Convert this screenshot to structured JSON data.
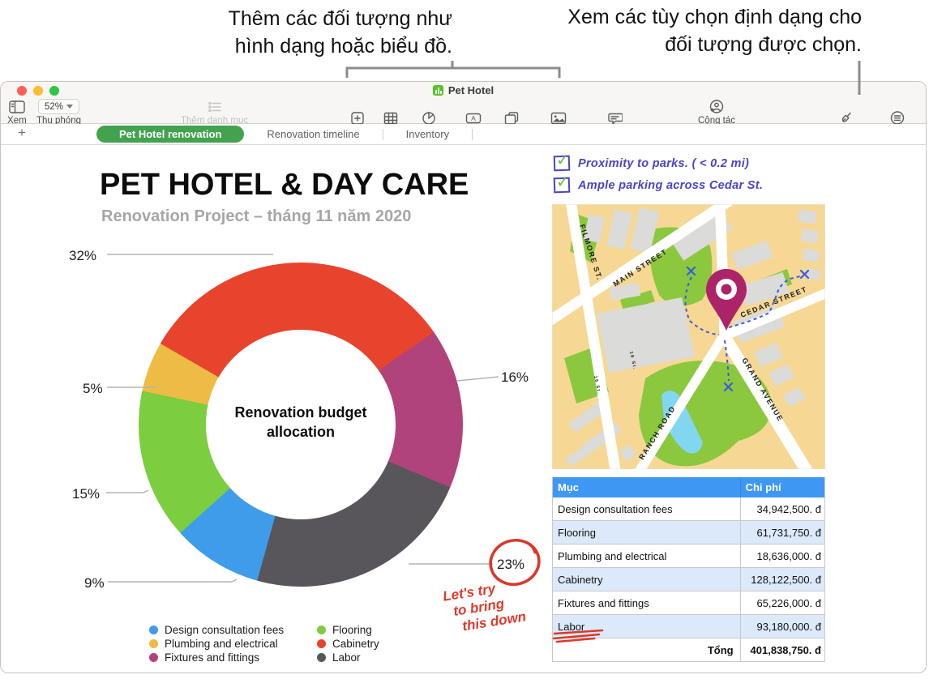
{
  "callouts": {
    "left_line1": "Thêm các đối tượng như",
    "left_line2": "hình dạng hoặc biểu đồ.",
    "right_line1": "Xem các tùy chọn định dạng cho",
    "right_line2": "đối tượng được chọn."
  },
  "window": {
    "title": "Pet Hotel",
    "toolbar": {
      "view": "Xem",
      "zoom_value": "52%",
      "zoom": "Thu phóng",
      "add_category": "Thêm danh mục",
      "insert": "Chèn",
      "table": "Bảng",
      "chart": "Biểu đồ",
      "text": "Văn bản",
      "shape": "Hình",
      "media": "Phương tiện",
      "comment": "Nhận xét",
      "collaborate": "Cộng tác",
      "format": "Định dạng",
      "organize": "Tổ chức"
    },
    "tabs": {
      "add": "+",
      "items": [
        {
          "label": "Pet Hotel renovation",
          "active": true
        },
        {
          "label": "Renovation timeline",
          "active": false
        },
        {
          "label": "Inventory",
          "active": false
        }
      ]
    }
  },
  "sheet": {
    "title": "PET HOTEL & DAY CARE",
    "subtitle": "Renovation Project – tháng 11 năm 2020",
    "checklist": [
      "Proximity to parks. ( < 0.2 mi)",
      "Ample parking across Cedar St."
    ],
    "red_note": [
      "Let's try",
      "to bring",
      "this down"
    ],
    "map_labels": {
      "filmore": "FILMORE ST.",
      "main": "MAIN STREET",
      "cedar": "CEDAR STREET",
      "grand": "GRAND AVENUE",
      "ranch": "RANCH ROAD",
      "st18": "18 St.",
      "st16": "16 St."
    }
  },
  "chart_data": {
    "type": "pie",
    "donut": true,
    "title": "Renovation budget allocation",
    "center_label": [
      "Renovation budget",
      "allocation"
    ],
    "start_angle_deg": -60,
    "slices": [
      {
        "label": "Cabinetry",
        "percent": 32,
        "pct_label": "32%",
        "color": "#e8432c"
      },
      {
        "label": "Fixtures and fittings",
        "percent": 16,
        "pct_label": "16%",
        "color": "#b0437c"
      },
      {
        "label": "Labor",
        "percent": 23,
        "pct_label": "23%",
        "color": "#59565b"
      },
      {
        "label": "Design consultation fees",
        "percent": 9,
        "pct_label": "9%",
        "color": "#3f9ceb"
      },
      {
        "label": "Flooring",
        "percent": 15,
        "pct_label": "15%",
        "color": "#7ccd3f"
      },
      {
        "label": "Plumbing and electrical",
        "percent": 5,
        "pct_label": "5%",
        "color": "#eebb45"
      }
    ],
    "legend_columns": [
      [
        {
          "label": "Design consultation fees",
          "color": "#3f9ceb"
        },
        {
          "label": "Plumbing and electrical",
          "color": "#eebb45"
        },
        {
          "label": "Fixtures and fittings",
          "color": "#b0437c"
        }
      ],
      [
        {
          "label": "Flooring",
          "color": "#7ccd3f"
        },
        {
          "label": "Cabinetry",
          "color": "#e8432c"
        },
        {
          "label": "Labor",
          "color": "#59565b"
        }
      ]
    ]
  },
  "table": {
    "headers": [
      "Mục",
      "Chi phí"
    ],
    "rows": [
      {
        "item": "Design consultation fees",
        "cost": "34,942,500. đ"
      },
      {
        "item": "Flooring",
        "cost": "61,731,750. đ"
      },
      {
        "item": "Plumbing and electrical",
        "cost": "18,636,000. đ"
      },
      {
        "item": "Cabinetry",
        "cost": "128,122,500. đ"
      },
      {
        "item": "Fixtures and fittings",
        "cost": "65,226,000. đ"
      },
      {
        "item": "Labor",
        "cost": "93,180,000. đ"
      }
    ],
    "total_label": "Tổng",
    "total_value": "401,838,750. đ",
    "header_bg": "#3e97f3",
    "alt_row_bg": "#dce9fb"
  },
  "colors": {
    "active_tab": "#42a24e",
    "annotation_red": "#e03a2b",
    "annotation_blue": "#4a43c8",
    "map_pin": "#ad2369"
  }
}
